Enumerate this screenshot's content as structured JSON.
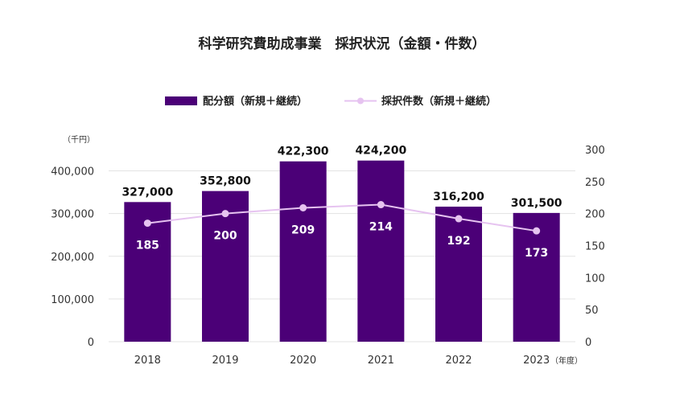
{
  "chart_data": {
    "type": "bar",
    "title": "科学研究費助成事業　採択状況（金額・件数）",
    "categories": [
      "2018",
      "2019",
      "2020",
      "2021",
      "2022",
      "2023"
    ],
    "series": [
      {
        "name": "配分額（新規＋継続）",
        "type": "bar",
        "axis": "left",
        "values": [
          327000,
          352800,
          422300,
          424200,
          316200,
          301500
        ],
        "labels": [
          "327,000",
          "352,800",
          "422,300",
          "424,200",
          "316,200",
          "301,500"
        ],
        "color": "#4b0077"
      },
      {
        "name": "採択件数（新規＋継続）",
        "type": "line",
        "axis": "right",
        "values": [
          185,
          200,
          209,
          214,
          192,
          173
        ],
        "labels": [
          "185",
          "200",
          "209",
          "214",
          "192",
          "173"
        ],
        "color": "#e6c3f0"
      }
    ],
    "y_left": {
      "unit_label": "（千円）",
      "ylim": [
        0,
        450000
      ],
      "ticks": [
        0,
        100000,
        200000,
        300000,
        400000
      ],
      "tick_labels": [
        "0",
        "100,000",
        "200,000",
        "300,000",
        "400,000"
      ]
    },
    "y_right": {
      "ylim": [
        0,
        300
      ],
      "ticks": [
        0,
        50,
        100,
        150,
        200,
        250,
        300
      ],
      "tick_labels": [
        "0",
        "50",
        "100",
        "150",
        "200",
        "250",
        "300"
      ]
    },
    "x_unit_label": "（年度）",
    "grid": true,
    "legend_position": "top-center",
    "colors": {
      "grid": "#e3e3e3",
      "text": "#222222"
    }
  }
}
